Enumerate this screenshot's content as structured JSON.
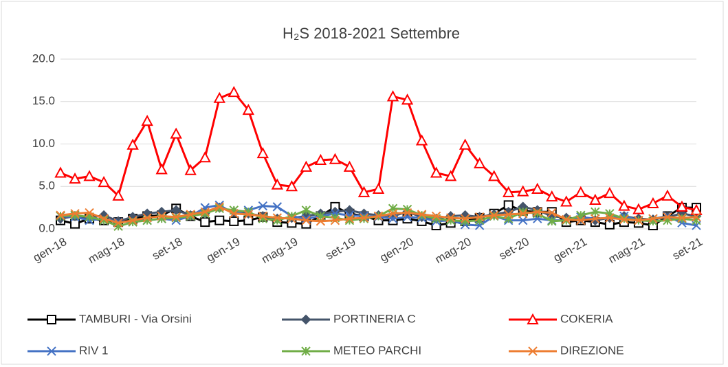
{
  "chart_data": {
    "type": "line",
    "title": "H₂S 2018-2021 Settembre",
    "categories": [
      "gen-18",
      null,
      null,
      null,
      "mag-18",
      null,
      null,
      null,
      "set-18",
      null,
      null,
      null,
      "gen-19",
      null,
      null,
      null,
      "mag-19",
      null,
      null,
      null,
      "set-19",
      null,
      null,
      null,
      "gen-20",
      null,
      null,
      null,
      "mag-20",
      null,
      null,
      null,
      "set-20",
      null,
      null,
      null,
      "gen-21",
      null,
      null,
      null,
      "mag-21",
      null,
      null,
      null,
      "set-21"
    ],
    "ylim": [
      0,
      20
    ],
    "yticks": [
      {
        "value": 0,
        "label": "0.0"
      },
      {
        "value": 5,
        "label": "5.0"
      },
      {
        "value": 10,
        "label": "10.0"
      },
      {
        "value": 15,
        "label": "15.0"
      },
      {
        "value": 20,
        "label": "20.0"
      }
    ],
    "grid": true,
    "legend": "bottom",
    "series": [
      {
        "name": "TAMBURI - Via Orsini",
        "color": "#000000",
        "marker": "square",
        "values": [
          1.0,
          0.6,
          1.2,
          1.0,
          0.8,
          1.2,
          1.5,
          1.6,
          2.4,
          1.5,
          0.8,
          1.0,
          0.9,
          1.0,
          1.4,
          0.8,
          0.7,
          0.6,
          1.5,
          2.6,
          1.8,
          1.5,
          1.0,
          1.0,
          1.2,
          0.9,
          0.4,
          0.7,
          0.9,
          1.3,
          1.8,
          2.8,
          2.1,
          2.0,
          2.0,
          0.8,
          1.0,
          0.8,
          0.5,
          0.8,
          0.7,
          0.4,
          1.5,
          2.5,
          2.5
        ]
      },
      {
        "name": "PORTINERIA C",
        "color": "#44546a",
        "marker": "diamond",
        "values": [
          1.2,
          1.5,
          1.3,
          1.6,
          0.9,
          1.4,
          1.8,
          2.0,
          2.2,
          1.6,
          1.8,
          2.5,
          2.0,
          1.8,
          1.5,
          1.2,
          1.3,
          1.5,
          1.8,
          2.0,
          2.2,
          1.8,
          1.6,
          1.5,
          2.0,
          1.4,
          1.2,
          1.5,
          1.6,
          1.4,
          1.7,
          2.0,
          2.6,
          2.2,
          1.5,
          1.3,
          1.2,
          1.0,
          1.3,
          1.5,
          1.2,
          1.1,
          1.4,
          1.8,
          1.5
        ]
      },
      {
        "name": "COKERIA",
        "color": "#ff0000",
        "marker": "triangle",
        "values": [
          6.6,
          5.9,
          6.2,
          5.5,
          3.9,
          9.9,
          12.7,
          7.0,
          11.2,
          6.9,
          8.4,
          15.4,
          16.1,
          14.0,
          8.9,
          5.2,
          5.0,
          7.3,
          8.1,
          8.2,
          7.3,
          4.3,
          4.7,
          15.6,
          15.2,
          10.4,
          6.6,
          6.2,
          9.9,
          7.7,
          6.2,
          4.3,
          4.4,
          4.7,
          3.8,
          3.2,
          4.3,
          3.4,
          4.2,
          2.7,
          2.3,
          3.0,
          3.9,
          2.6,
          2.2
        ]
      },
      {
        "name": "RIV 1",
        "color": "#4472c4",
        "marker": "x",
        "values": [
          1.5,
          1.4,
          1.0,
          1.2,
          0.8,
          0.9,
          1.0,
          1.2,
          1.0,
          1.5,
          2.5,
          2.8,
          1.8,
          2.2,
          2.7,
          2.6,
          1.5,
          1.2,
          1.5,
          1.8,
          1.6,
          1.5,
          1.4,
          1.2,
          1.4,
          1.3,
          0.9,
          1.0,
          0.5,
          0.4,
          1.5,
          1.0,
          1.0,
          1.2,
          1.0,
          1.0,
          1.4,
          1.2,
          1.3,
          1.5,
          1.0,
          1.2,
          1.5,
          0.7,
          0.4
        ]
      },
      {
        "name": "METEO PARCHI",
        "color": "#70ad47",
        "marker": "star",
        "values": [
          1.5,
          1.6,
          1.4,
          1.0,
          0.3,
          0.8,
          1.0,
          1.2,
          1.3,
          1.5,
          1.8,
          2.4,
          2.2,
          2.0,
          1.2,
          1.0,
          1.5,
          2.2,
          1.5,
          1.3,
          1.0,
          1.2,
          1.5,
          2.4,
          2.3,
          1.6,
          1.2,
          1.0,
          0.9,
          1.0,
          1.5,
          1.2,
          2.0,
          1.8,
          0.9,
          1.0,
          1.6,
          2.0,
          1.8,
          1.2,
          1.0,
          0.9,
          1.0,
          1.2,
          1.0
        ]
      },
      {
        "name": "DIREZIONE",
        "color": "#ed7d31",
        "marker": "x",
        "values": [
          1.6,
          1.8,
          1.9,
          1.2,
          0.7,
          1.0,
          1.3,
          1.5,
          1.4,
          1.7,
          2.0,
          2.6,
          1.8,
          1.7,
          1.5,
          1.3,
          1.2,
          1.0,
          0.9,
          1.0,
          1.2,
          1.3,
          1.5,
          1.8,
          1.9,
          1.7,
          1.5,
          1.3,
          1.2,
          1.4,
          1.6,
          1.7,
          1.8,
          2.0,
          1.9,
          1.1,
          1.0,
          1.2,
          1.3,
          1.1,
          1.0,
          1.2,
          1.4,
          1.3,
          1.4
        ]
      }
    ]
  }
}
